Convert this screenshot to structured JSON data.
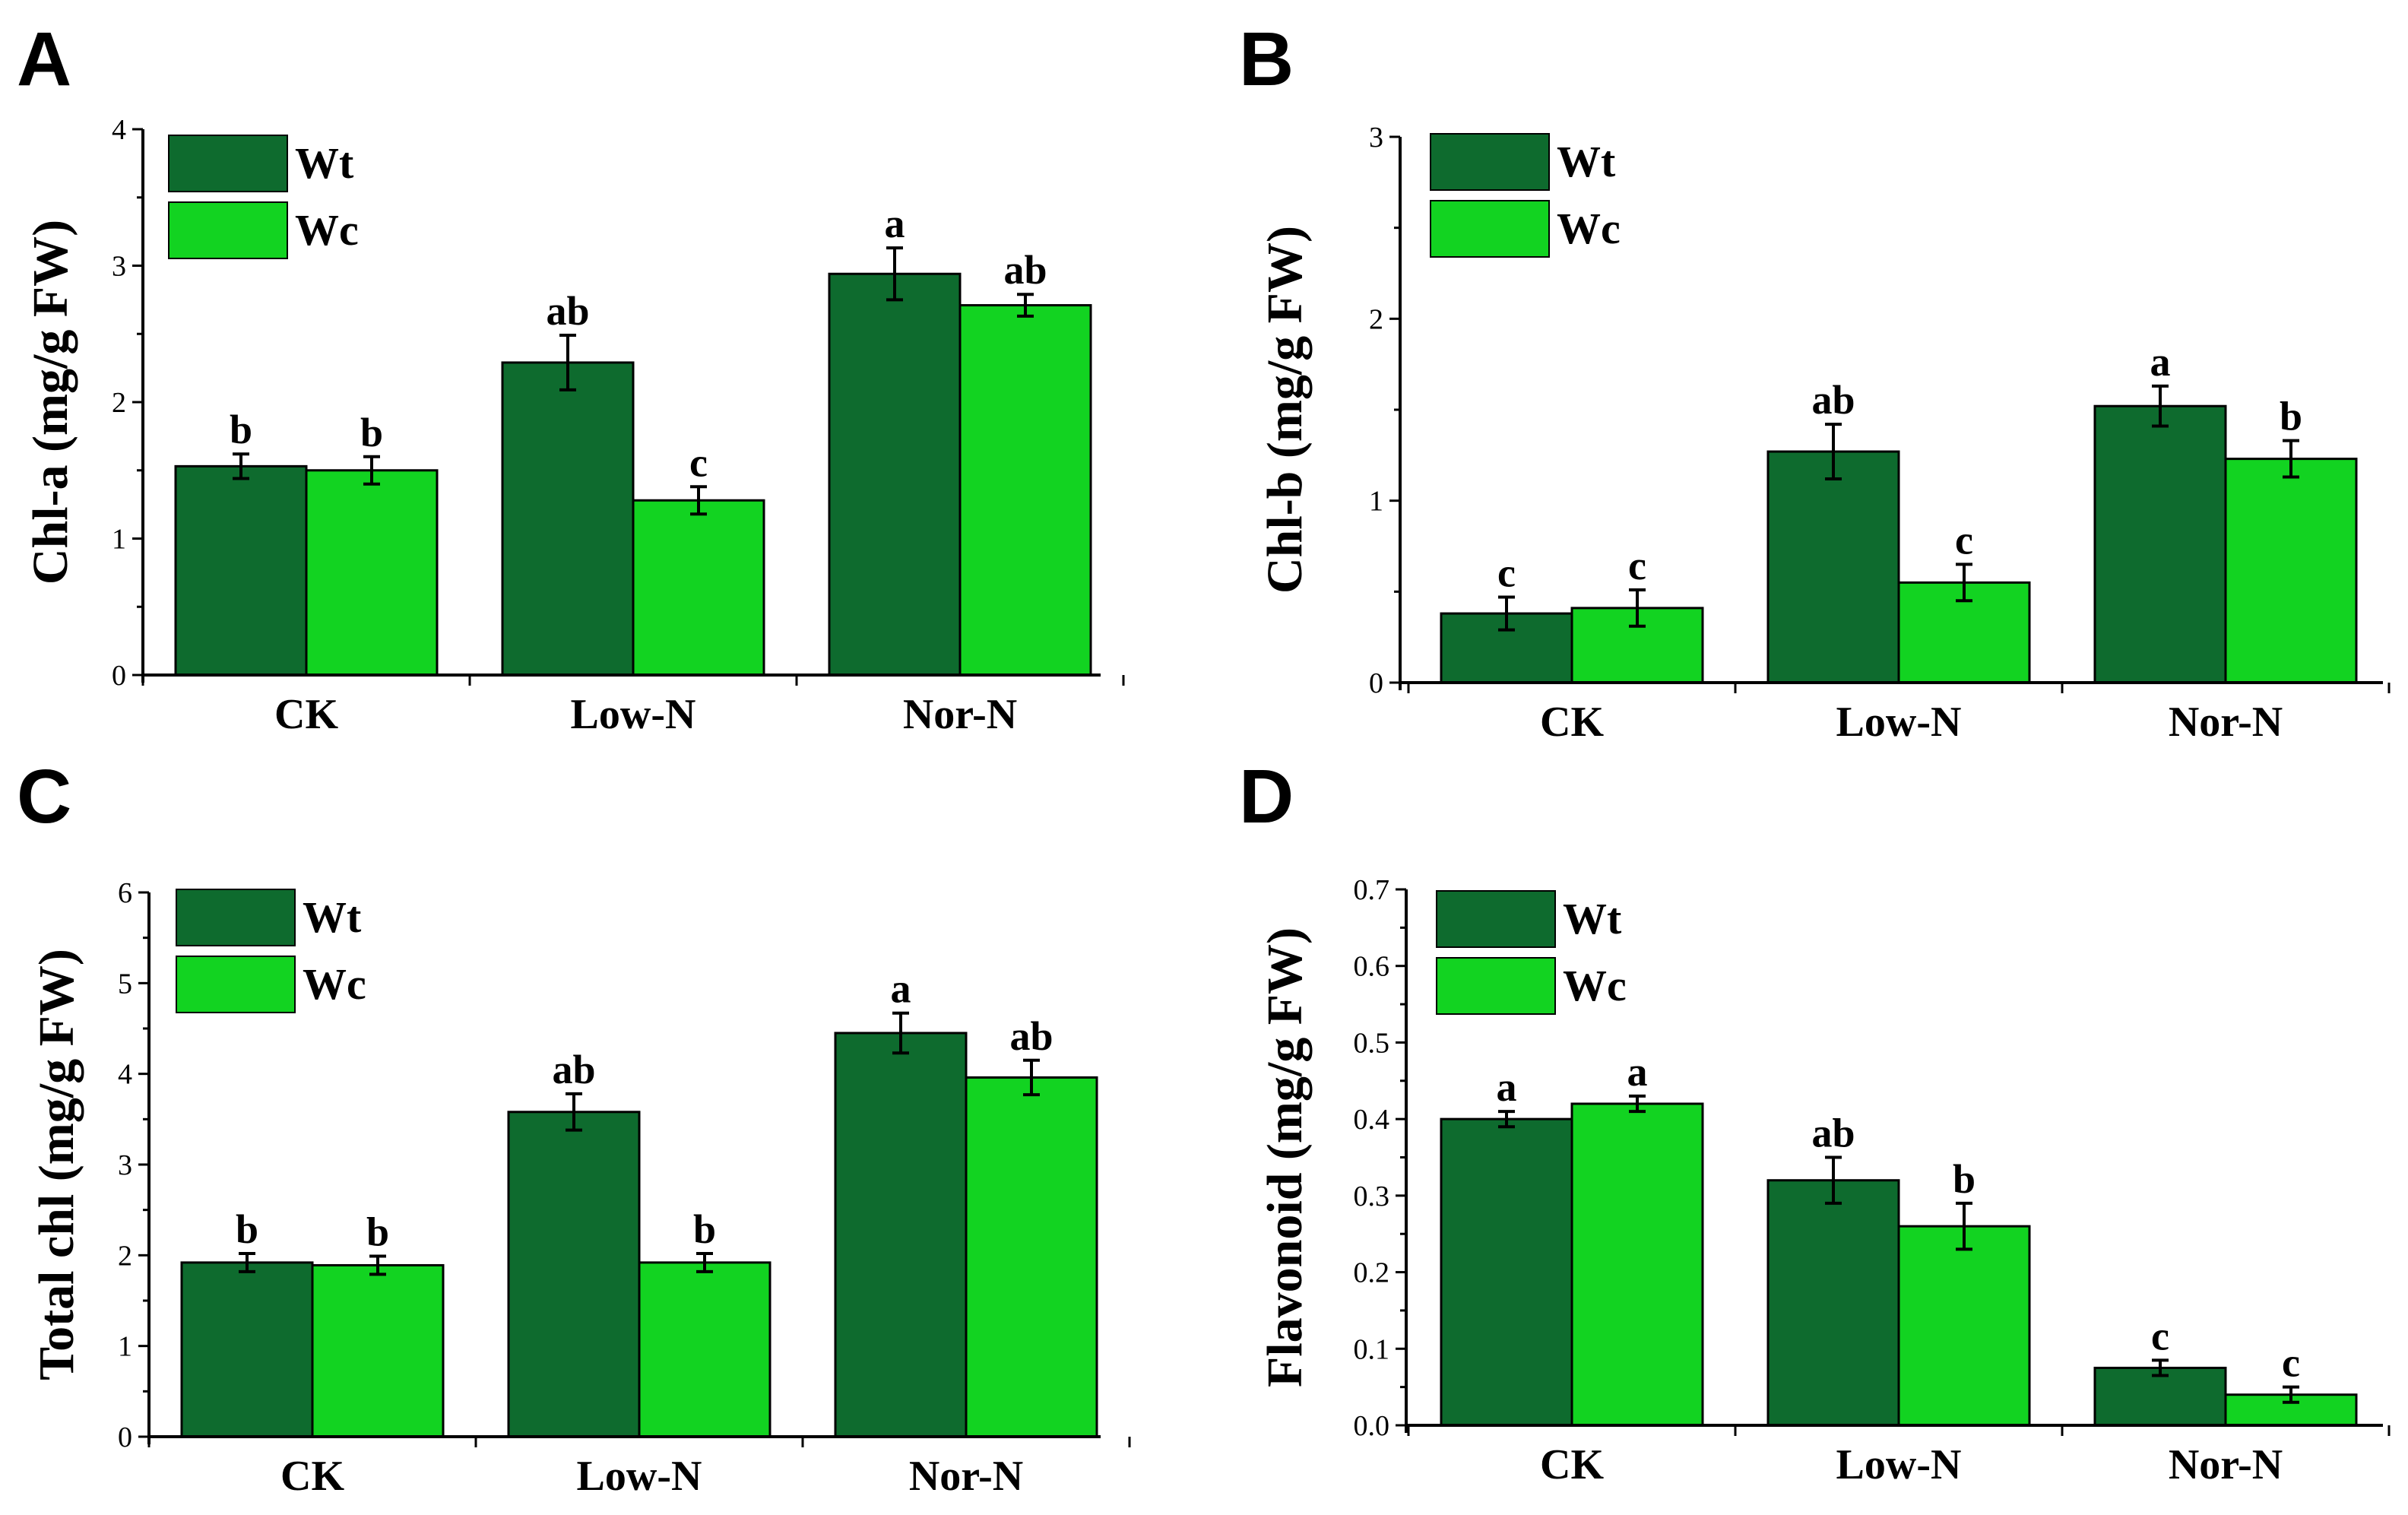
{
  "colors": {
    "Wt": "#0e6b2e",
    "Wc": "#12d321",
    "axis": "#000000"
  },
  "chart_data": [
    {
      "panel": "A",
      "type": "bar",
      "ylabel": "Chl-a (mg/g FW)",
      "categories": [
        "CK",
        "Low-N",
        "Nor-N"
      ],
      "ylim": [
        0,
        4
      ],
      "yticks": [
        "0",
        "1",
        "2",
        "3",
        "4"
      ],
      "legend_position": "top-left",
      "series": [
        {
          "name": "Wt",
          "values": [
            1.53,
            2.29,
            2.94
          ],
          "errors": [
            0.09,
            0.2,
            0.19
          ],
          "letters": [
            "b",
            "ab",
            "a"
          ]
        },
        {
          "name": "Wc",
          "values": [
            1.5,
            1.28,
            2.71
          ],
          "errors": [
            0.1,
            0.1,
            0.08
          ],
          "letters": [
            "b",
            "c",
            "ab"
          ]
        }
      ]
    },
    {
      "panel": "B",
      "type": "bar",
      "ylabel": "Chl-b (mg/g FW)",
      "categories": [
        "CK",
        "Low-N",
        "Nor-N"
      ],
      "ylim": [
        0,
        3
      ],
      "yticks": [
        "0",
        "1",
        "2",
        "3"
      ],
      "legend_position": "top-left",
      "series": [
        {
          "name": "Wt",
          "values": [
            0.38,
            1.27,
            1.52
          ],
          "errors": [
            0.09,
            0.15,
            0.11
          ],
          "letters": [
            "c",
            "ab",
            "a"
          ]
        },
        {
          "name": "Wc",
          "values": [
            0.41,
            0.55,
            1.23
          ],
          "errors": [
            0.1,
            0.1,
            0.1
          ],
          "letters": [
            "c",
            "c",
            "b"
          ]
        }
      ]
    },
    {
      "panel": "C",
      "type": "bar",
      "ylabel": "Total chl (mg/g FW)",
      "categories": [
        "CK",
        "Low-N",
        "Nor-N"
      ],
      "ylim": [
        0,
        6
      ],
      "yticks": [
        "0",
        "1",
        "2",
        "3",
        "4",
        "5",
        "6"
      ],
      "legend_position": "top-left",
      "series": [
        {
          "name": "Wt",
          "values": [
            1.92,
            3.58,
            4.45
          ],
          "errors": [
            0.1,
            0.2,
            0.22
          ],
          "letters": [
            "b",
            "ab",
            "a"
          ]
        },
        {
          "name": "Wc",
          "values": [
            1.89,
            1.92,
            3.96
          ],
          "errors": [
            0.1,
            0.1,
            0.19
          ],
          "letters": [
            "b",
            "b",
            "ab"
          ]
        }
      ]
    },
    {
      "panel": "D",
      "type": "bar",
      "ylabel": "Flavonoid (mg/g FW)",
      "categories": [
        "CK",
        "Low-N",
        "Nor-N"
      ],
      "ylim": [
        0,
        0.7
      ],
      "yticks": [
        "0.0",
        "0.1",
        "0.2",
        "0.3",
        "0.4",
        "0.5",
        "0.6",
        "0.7"
      ],
      "legend_position": "top-left",
      "series": [
        {
          "name": "Wt",
          "values": [
            0.4,
            0.32,
            0.075
          ],
          "errors": [
            0.01,
            0.03,
            0.01
          ],
          "letters": [
            "a",
            "ab",
            "c"
          ]
        },
        {
          "name": "Wc",
          "values": [
            0.42,
            0.26,
            0.04
          ],
          "errors": [
            0.01,
            0.03,
            0.01
          ],
          "letters": [
            "a",
            "b",
            "c"
          ]
        }
      ]
    }
  ]
}
